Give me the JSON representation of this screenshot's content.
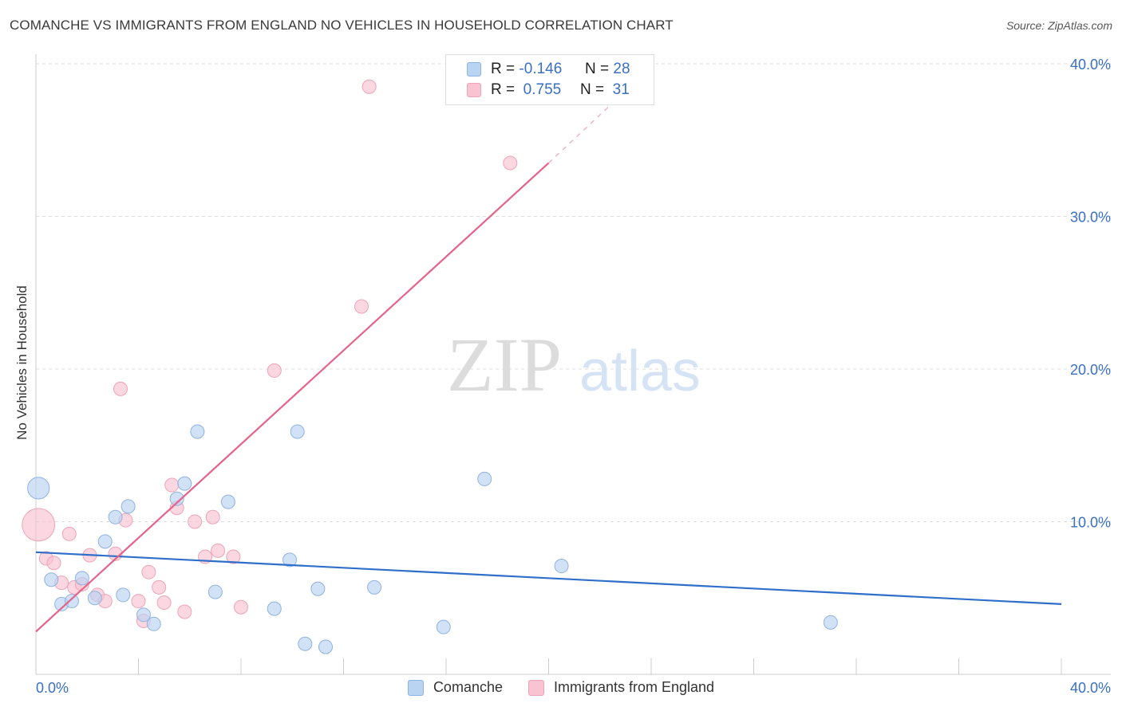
{
  "title": "COMANCHE VS IMMIGRANTS FROM ENGLAND NO VEHICLES IN HOUSEHOLD CORRELATION CHART",
  "source": "Source: ZipAtlas.com",
  "watermark": {
    "zip": "ZIP",
    "atlas": "atlas"
  },
  "legend": {
    "items": [
      {
        "r_label": "R =",
        "r_value": "-0.146",
        "n_label": "N =",
        "n_value": "28"
      },
      {
        "r_label": "R =",
        "r_value": "0.755",
        "n_label": "N =",
        "n_value": "31"
      }
    ]
  },
  "bottom_legend": {
    "comanche": "Comanche",
    "england": "Immigrants from England"
  },
  "colors": {
    "comanche_fill": "#b9d3f2",
    "comanche_stroke": "#8fb3e0",
    "comanche_line": "#2f6fc9",
    "england_fill": "#f9c3d1",
    "england_stroke": "#eea3b7",
    "england_line": "#e5628a",
    "axis_text": "#3a6fc4",
    "grid": "#dddddd"
  },
  "chart_data": {
    "type": "scatter",
    "title": "COMANCHE VS IMMIGRANTS FROM ENGLAND NO VEHICLES IN HOUSEHOLD CORRELATION CHART",
    "xlabel": "",
    "ylabel": "No Vehicles in Household",
    "xlim": [
      0,
      40
    ],
    "ylim": [
      0,
      40
    ],
    "x_tick_labels": [
      "0.0%",
      "40.0%"
    ],
    "y_tick_values": [
      10,
      20,
      30,
      40
    ],
    "y_tick_labels": [
      "10.0%",
      "20.0%",
      "30.0%",
      "40.0%"
    ],
    "series": [
      {
        "name": "Comanche",
        "r": -0.146,
        "n": 28,
        "trend": {
          "x": [
            0,
            40
          ],
          "y": [
            8.0,
            4.6
          ]
        },
        "points": [
          {
            "x": 0.1,
            "y": 12.2,
            "s": 1.6
          },
          {
            "x": 0.6,
            "y": 6.2,
            "s": 1
          },
          {
            "x": 1.0,
            "y": 4.6,
            "s": 1
          },
          {
            "x": 1.4,
            "y": 4.8,
            "s": 1
          },
          {
            "x": 1.8,
            "y": 6.3,
            "s": 1
          },
          {
            "x": 2.3,
            "y": 5.0,
            "s": 1
          },
          {
            "x": 2.7,
            "y": 8.7,
            "s": 1
          },
          {
            "x": 3.1,
            "y": 10.3,
            "s": 1
          },
          {
            "x": 3.4,
            "y": 5.2,
            "s": 1
          },
          {
            "x": 3.6,
            "y": 11.0,
            "s": 1
          },
          {
            "x": 4.2,
            "y": 3.9,
            "s": 1
          },
          {
            "x": 4.6,
            "y": 3.3,
            "s": 1
          },
          {
            "x": 5.5,
            "y": 11.5,
            "s": 1
          },
          {
            "x": 5.8,
            "y": 12.5,
            "s": 1
          },
          {
            "x": 6.3,
            "y": 15.9,
            "s": 1
          },
          {
            "x": 7.0,
            "y": 5.4,
            "s": 1
          },
          {
            "x": 7.5,
            "y": 11.3,
            "s": 1
          },
          {
            "x": 9.3,
            "y": 4.3,
            "s": 1
          },
          {
            "x": 9.9,
            "y": 7.5,
            "s": 1
          },
          {
            "x": 10.2,
            "y": 15.9,
            "s": 1
          },
          {
            "x": 10.5,
            "y": 2.0,
            "s": 1
          },
          {
            "x": 11.0,
            "y": 5.6,
            "s": 1
          },
          {
            "x": 11.3,
            "y": 1.8,
            "s": 1
          },
          {
            "x": 13.2,
            "y": 5.7,
            "s": 1
          },
          {
            "x": 15.9,
            "y": 3.1,
            "s": 1
          },
          {
            "x": 17.5,
            "y": 12.8,
            "s": 1
          },
          {
            "x": 20.5,
            "y": 7.1,
            "s": 1
          },
          {
            "x": 31.0,
            "y": 3.4,
            "s": 1
          }
        ]
      },
      {
        "name": "Immigrants from England",
        "r": 0.755,
        "n": 31,
        "trend": {
          "x": [
            0,
            20.0
          ],
          "y": [
            2.8,
            33.5
          ]
        },
        "trend_dashed": {
          "x": [
            20.0,
            24.0
          ],
          "y": [
            33.5,
            39.8
          ]
        },
        "points": [
          {
            "x": 0.1,
            "y": 9.8,
            "s": 2.4
          },
          {
            "x": 0.4,
            "y": 7.6,
            "s": 1
          },
          {
            "x": 0.7,
            "y": 7.3,
            "s": 1
          },
          {
            "x": 1.0,
            "y": 6.0,
            "s": 1
          },
          {
            "x": 1.3,
            "y": 9.2,
            "s": 1
          },
          {
            "x": 1.5,
            "y": 5.7,
            "s": 1
          },
          {
            "x": 1.8,
            "y": 5.9,
            "s": 1
          },
          {
            "x": 2.1,
            "y": 7.8,
            "s": 1
          },
          {
            "x": 2.4,
            "y": 5.2,
            "s": 1
          },
          {
            "x": 2.7,
            "y": 4.8,
            "s": 1
          },
          {
            "x": 3.1,
            "y": 7.9,
            "s": 1
          },
          {
            "x": 3.3,
            "y": 18.7,
            "s": 1
          },
          {
            "x": 3.5,
            "y": 10.1,
            "s": 1
          },
          {
            "x": 4.0,
            "y": 4.8,
            "s": 1
          },
          {
            "x": 4.2,
            "y": 3.5,
            "s": 1
          },
          {
            "x": 4.4,
            "y": 6.7,
            "s": 1
          },
          {
            "x": 4.8,
            "y": 5.7,
            "s": 1
          },
          {
            "x": 5.0,
            "y": 4.7,
            "s": 1
          },
          {
            "x": 5.3,
            "y": 12.4,
            "s": 1
          },
          {
            "x": 5.5,
            "y": 10.9,
            "s": 1
          },
          {
            "x": 5.8,
            "y": 4.1,
            "s": 1
          },
          {
            "x": 6.2,
            "y": 10.0,
            "s": 1
          },
          {
            "x": 6.6,
            "y": 7.7,
            "s": 1
          },
          {
            "x": 6.9,
            "y": 10.3,
            "s": 1
          },
          {
            "x": 7.1,
            "y": 8.1,
            "s": 1
          },
          {
            "x": 7.7,
            "y": 7.7,
            "s": 1
          },
          {
            "x": 8.0,
            "y": 4.4,
            "s": 1
          },
          {
            "x": 9.3,
            "y": 19.9,
            "s": 1
          },
          {
            "x": 12.7,
            "y": 24.1,
            "s": 1
          },
          {
            "x": 13.0,
            "y": 38.5,
            "s": 1
          },
          {
            "x": 18.5,
            "y": 33.5,
            "s": 1
          }
        ]
      }
    ]
  }
}
